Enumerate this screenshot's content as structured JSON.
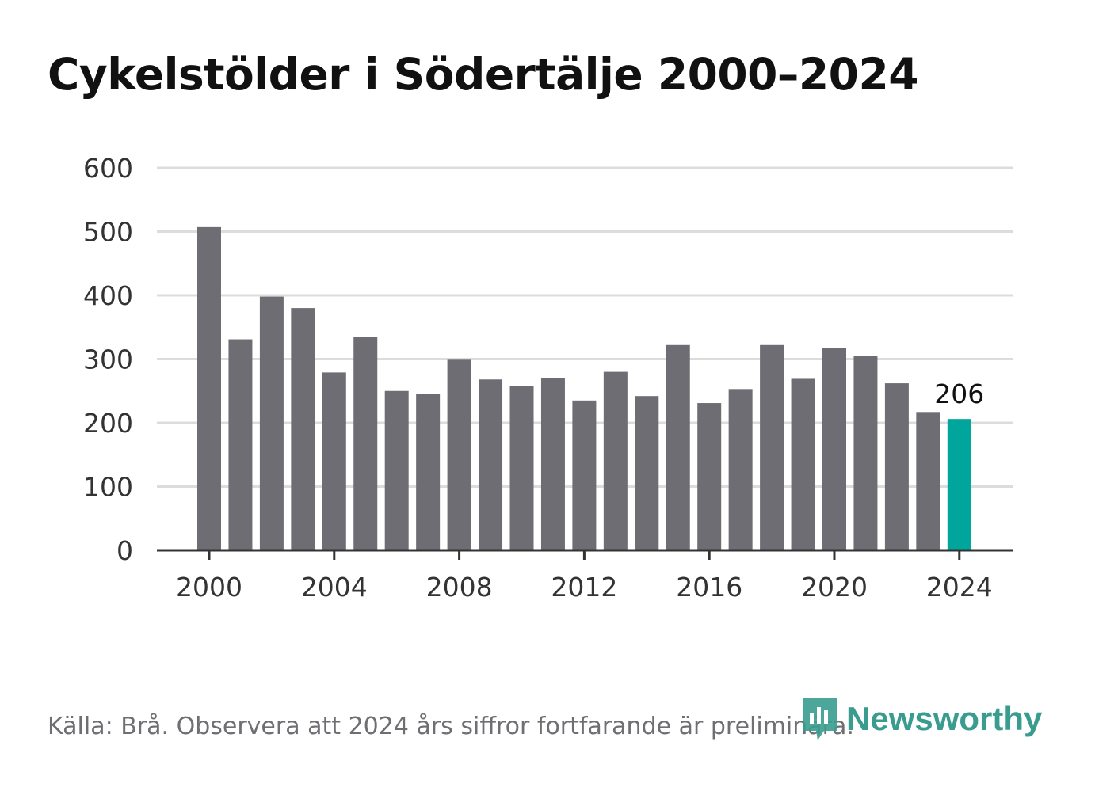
{
  "title": "Cykelstölder i Södertälje 2000–2024",
  "source": "Källa: Brå. Observera att 2024 års siffror fortfarande är preliminära.",
  "brand": {
    "name": "Newsworthy",
    "icon": "newsworthy-logo-icon"
  },
  "colors": {
    "bar": "#6e6d74",
    "highlight": "#00a69c",
    "grid": "#dcdcdc",
    "axis": "#333333",
    "brand": "#3a9c8f"
  },
  "chart_data": {
    "type": "bar",
    "categories": [
      "2000",
      "2001",
      "2002",
      "2003",
      "2004",
      "2005",
      "2006",
      "2007",
      "2008",
      "2009",
      "2010",
      "2011",
      "2012",
      "2013",
      "2014",
      "2015",
      "2016",
      "2017",
      "2018",
      "2019",
      "2020",
      "2021",
      "2022",
      "2023",
      "2024"
    ],
    "values": [
      507,
      331,
      398,
      380,
      279,
      335,
      250,
      245,
      299,
      268,
      258,
      270,
      235,
      280,
      242,
      322,
      231,
      253,
      322,
      269,
      318,
      305,
      262,
      217,
      206
    ],
    "highlight_index": 24,
    "data_labels": [
      {
        "category": "2024",
        "text": "206"
      }
    ],
    "xticks": [
      "2000",
      "2004",
      "2008",
      "2012",
      "2016",
      "2020",
      "2024"
    ],
    "yticks": [
      0,
      100,
      200,
      300,
      400,
      500,
      600
    ],
    "ylim": [
      0,
      600
    ],
    "grid": true,
    "legend": "none"
  }
}
